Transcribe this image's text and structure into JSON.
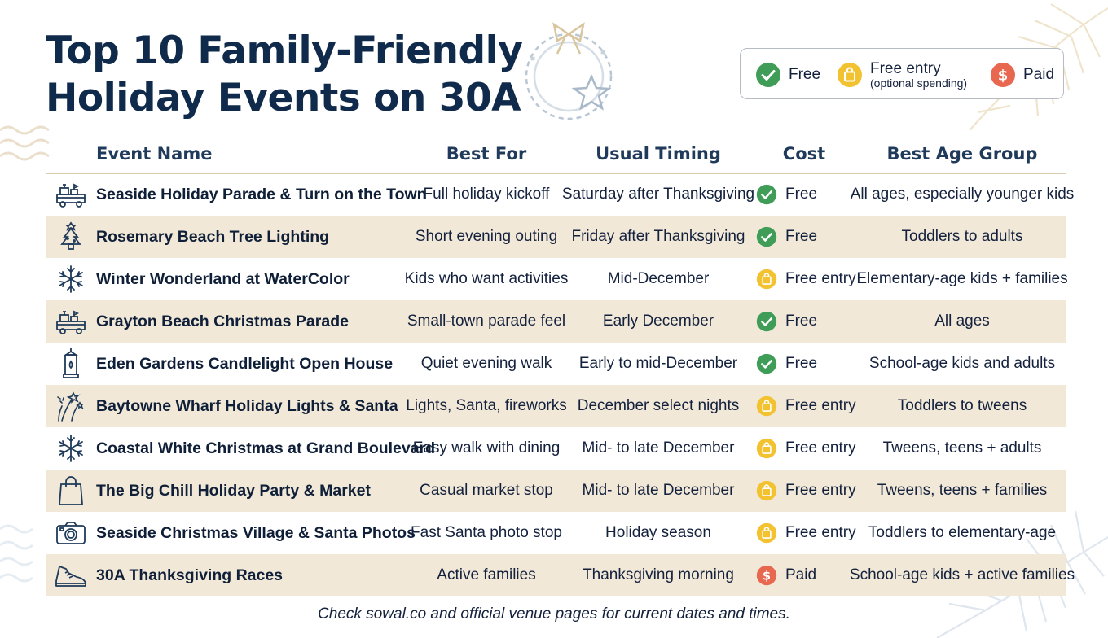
{
  "title": {
    "line1": "Top 10 Family-Friendly",
    "line2": "Holiday Events on 30A"
  },
  "legend": {
    "free": "Free",
    "free_entry": "Free entry",
    "free_entry_note": "(optional spending)",
    "paid": "Paid"
  },
  "columns": {
    "event": "Event Name",
    "best_for": "Best For",
    "timing": "Usual Timing",
    "cost": "Cost",
    "age": "Best Age Group"
  },
  "rows": [
    {
      "icon": "parade-float-icon",
      "name": "Seaside Holiday Parade & Turn on the Town",
      "best_for": "Full holiday kickoff",
      "timing": "Saturday after Thanksgiving",
      "cost_type": "free",
      "cost": "Free",
      "age": "All ages, especially younger kids"
    },
    {
      "icon": "christmas-tree-icon",
      "name": "Rosemary Beach Tree Lighting",
      "best_for": "Short evening outing",
      "timing": "Friday after Thanksgiving",
      "cost_type": "free",
      "cost": "Free",
      "age": "Toddlers to adults"
    },
    {
      "icon": "snowflake-icon",
      "name": "Winter Wonderland at WaterColor",
      "best_for": "Kids who want activities",
      "timing": "Mid-December",
      "cost_type": "entry",
      "cost": "Free entry",
      "age": "Elementary-age kids + families"
    },
    {
      "icon": "parade-float-icon",
      "name": "Grayton Beach Christmas Parade",
      "best_for": "Small-town parade feel",
      "timing": "Early December",
      "cost_type": "free",
      "cost": "Free",
      "age": "All ages"
    },
    {
      "icon": "lantern-icon",
      "name": "Eden Gardens Candlelight Open House",
      "best_for": "Quiet evening walk",
      "timing": "Early to mid-December",
      "cost_type": "free",
      "cost": "Free",
      "age": "School-age kids and adults"
    },
    {
      "icon": "fireworks-icon",
      "name": "Baytowne Wharf Holiday Lights & Santa",
      "best_for": "Lights, Santa, fireworks",
      "timing": "December select nights",
      "cost_type": "entry",
      "cost": "Free entry",
      "age": "Toddlers to tweens"
    },
    {
      "icon": "snowflake-icon",
      "name": "Coastal White Christmas at Grand Boulevard",
      "best_for": "Easy walk with dining",
      "timing": "Mid- to late December",
      "cost_type": "entry",
      "cost": "Free entry",
      "age": "Tweens, teens + adults"
    },
    {
      "icon": "shopping-bag-icon",
      "name": "The Big Chill Holiday Party & Market",
      "best_for": "Casual market stop",
      "timing": "Mid- to late December",
      "cost_type": "entry",
      "cost": "Free entry",
      "age": "Tweens, teens + families"
    },
    {
      "icon": "camera-icon",
      "name": "Seaside Christmas Village & Santa Photos",
      "best_for": "Fast Santa photo stop",
      "timing": "Holiday season",
      "cost_type": "entry",
      "cost": "Free entry",
      "age": "Toddlers to elementary-age"
    },
    {
      "icon": "running-shoe-icon",
      "name": "30A Thanksgiving Races",
      "best_for": "Active families",
      "timing": "Thanksgiving morning",
      "cost_type": "paid",
      "cost": "Paid",
      "age": "School-age kids + active families"
    }
  ],
  "footer": "Check sowal.co and official venue pages for current dates and times.",
  "colors": {
    "free": "#3f9d57",
    "entry": "#f2c230",
    "paid": "#e8674f",
    "shade": "#f1e8d8",
    "title": "#0f2a4a"
  }
}
